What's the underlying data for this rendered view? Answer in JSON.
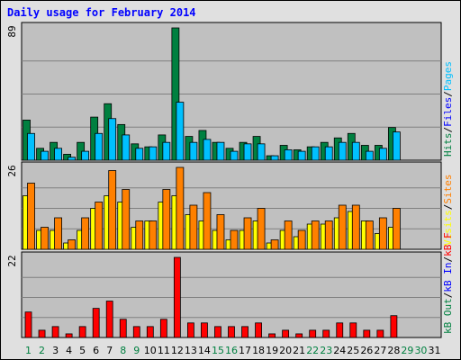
{
  "title": "Daily usage for February 2014",
  "colors": {
    "pages": "#00c0ff",
    "files": "#0000ff",
    "hits": "#008040",
    "visits": "#ffff00",
    "sites": "#ff8000",
    "kb_f": "#ff0000",
    "kb_in": "#0000ff",
    "kb_out": "#008040",
    "weekday": "#000000",
    "weekend": "#008040"
  },
  "chart_data": [
    {
      "type": "bar",
      "ymax": 89,
      "tick_label": "89",
      "categories": [
        "1",
        "2",
        "3",
        "4",
        "5",
        "6",
        "7",
        "8",
        "9",
        "10",
        "11",
        "12",
        "13",
        "14",
        "15",
        "16",
        "17",
        "18",
        "19",
        "20",
        "21",
        "22",
        "23",
        "24",
        "25",
        "26",
        "27",
        "28",
        "29",
        "30",
        "31"
      ],
      "weekend_days": [
        "1",
        "2",
        "8",
        "9",
        "15",
        "16",
        "22",
        "23",
        "29",
        "30"
      ],
      "axis_label_parts": [
        {
          "text": "Hits",
          "color": "#008040"
        },
        {
          "text": "/",
          "color": "#000000"
        },
        {
          "text": "Files",
          "color": "#0000ff"
        },
        {
          "text": "/",
          "color": "#000000"
        },
        {
          "text": "Pages",
          "color": "#00c0ff"
        }
      ],
      "series": [
        {
          "name": "Hits",
          "color": "#008040",
          "values": [
            27,
            8,
            12,
            4,
            12,
            29,
            38,
            24,
            11,
            9,
            17,
            89,
            16,
            20,
            12,
            8,
            12,
            16,
            3,
            10,
            7,
            9,
            12,
            15,
            18,
            10,
            10,
            22,
            0,
            0,
            0
          ]
        },
        {
          "name": "Files",
          "color": "#0000ff",
          "values": [
            18,
            6,
            8,
            2,
            6,
            18,
            28,
            17,
            8,
            9,
            12,
            39,
            12,
            14,
            12,
            6,
            11,
            11,
            3,
            7,
            6,
            9,
            9,
            12,
            12,
            6,
            8,
            19,
            0,
            0,
            0
          ]
        },
        {
          "name": "Pages",
          "color": "#00c0ff",
          "values": [
            18,
            6,
            8,
            2,
            6,
            18,
            28,
            17,
            8,
            9,
            12,
            39,
            12,
            14,
            12,
            6,
            11,
            11,
            3,
            7,
            6,
            9,
            9,
            12,
            12,
            6,
            8,
            19,
            0,
            0,
            0
          ]
        }
      ]
    },
    {
      "type": "bar",
      "ymax": 26,
      "tick_label": "26",
      "axis_label_parts": [
        {
          "text": "Visits",
          "color": "#ffff00"
        },
        {
          "text": "/",
          "color": "#000000"
        },
        {
          "text": "Sites",
          "color": "#ff8000"
        }
      ],
      "series": [
        {
          "name": "Visits",
          "color": "#ffff00",
          "values": [
            17,
            6,
            6,
            2,
            6,
            13,
            17,
            15,
            7,
            9,
            15,
            17,
            11,
            9,
            6,
            3,
            6,
            9,
            2,
            6,
            4,
            8,
            8,
            10,
            12,
            9,
            5,
            7,
            0,
            0,
            0
          ]
        },
        {
          "name": "Sites",
          "color": "#ff8000",
          "values": [
            21,
            7,
            10,
            3,
            10,
            15,
            25,
            19,
            9,
            9,
            19,
            26,
            14,
            18,
            11,
            6,
            10,
            13,
            3,
            9,
            6,
            9,
            9,
            14,
            14,
            9,
            10,
            13,
            0,
            0,
            0
          ]
        }
      ]
    },
    {
      "type": "bar",
      "ymax": 22,
      "tick_label": "22",
      "axis_label_parts": [
        {
          "text": "kB Out",
          "color": "#008040"
        },
        {
          "text": "/",
          "color": "#000000"
        },
        {
          "text": "kB In",
          "color": "#0000ff"
        },
        {
          "text": "/",
          "color": "#000000"
        },
        {
          "text": "kB F",
          "color": "#ff0000"
        }
      ],
      "series": [
        {
          "name": "kB F",
          "color": "#ff0000",
          "values": [
            7,
            2,
            3,
            1,
            3,
            8,
            10,
            5,
            3,
            3,
            5,
            22,
            4,
            4,
            3,
            3,
            3,
            4,
            1,
            2,
            1,
            2,
            2,
            4,
            4,
            2,
            2,
            6,
            0,
            0,
            0
          ]
        }
      ]
    }
  ]
}
